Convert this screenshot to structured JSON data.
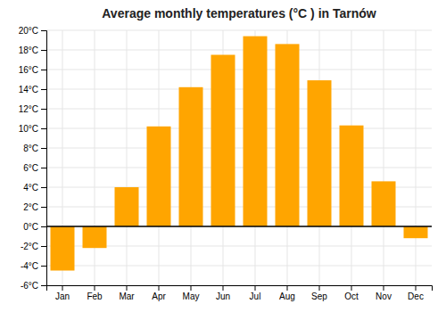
{
  "chart_data": {
    "type": "bar",
    "title": "Average monthly temperatures (°C ) in Tarnów",
    "categories": [
      "Jan",
      "Feb",
      "Mar",
      "Apr",
      "May",
      "Jun",
      "Jul",
      "Aug",
      "Sep",
      "Oct",
      "Nov",
      "Dec"
    ],
    "values": [
      -4.5,
      -2.2,
      4.0,
      10.2,
      14.2,
      17.5,
      19.4,
      18.6,
      14.9,
      10.3,
      4.6,
      -1.2
    ],
    "color": "#FFA500",
    "ylim": [
      -6,
      20
    ],
    "yticks": [
      {
        "value": -6,
        "label": "-6°C"
      },
      {
        "value": -4,
        "label": "-4°C"
      },
      {
        "value": -2,
        "label": "-2°C"
      },
      {
        "value": 0,
        "label": "0°C"
      },
      {
        "value": 2,
        "label": "2°C"
      },
      {
        "value": 4,
        "label": "4°C"
      },
      {
        "value": 6,
        "label": "6°C"
      },
      {
        "value": 8,
        "label": "8°C"
      },
      {
        "value": 10,
        "label": "10°C"
      },
      {
        "value": 12,
        "label": "12°C"
      },
      {
        "value": 14,
        "label": "14°C"
      },
      {
        "value": 16,
        "label": "16°C"
      },
      {
        "value": 18,
        "label": "18°C"
      },
      {
        "value": 20,
        "label": "20°C"
      }
    ],
    "grid": true
  }
}
